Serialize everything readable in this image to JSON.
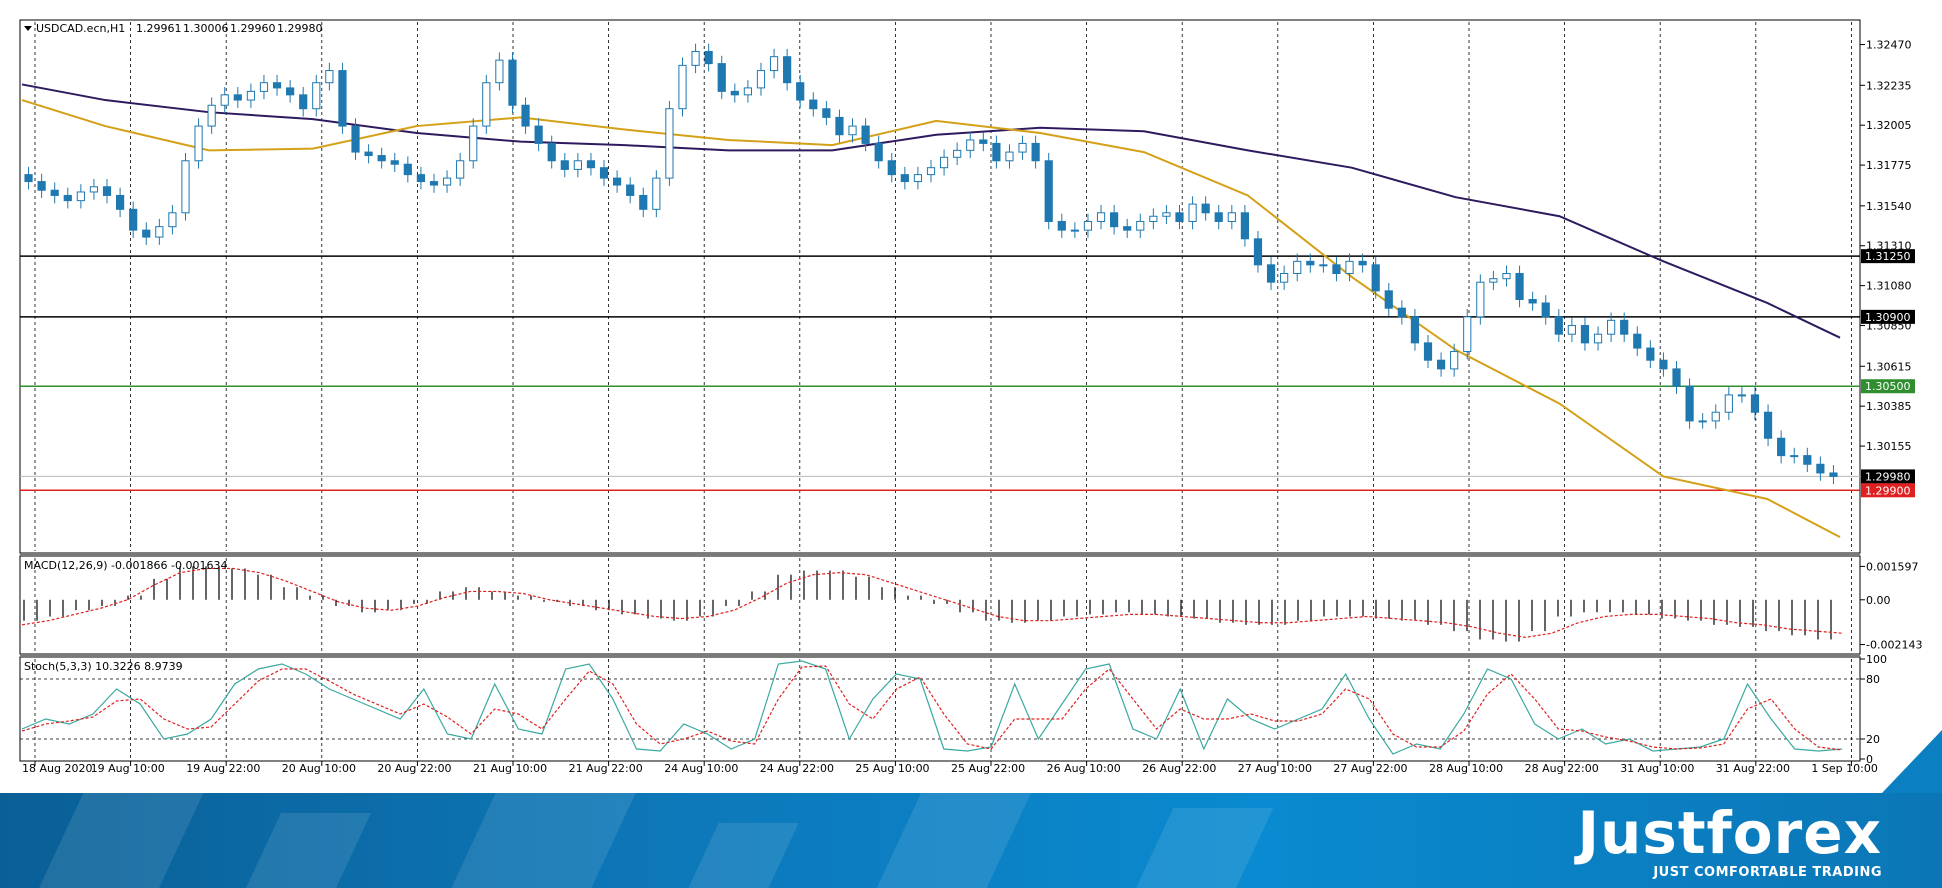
{
  "chart_data": [
    {
      "type": "candlestick",
      "title": "USDCAD.ecn,H1",
      "ohlc_header": [
        "1.29961",
        "1.30006",
        "1.29960",
        "1.29980"
      ],
      "ylim": [
        1.2955,
        1.326
      ],
      "y_ticks": [
        "1.32470",
        "1.32235",
        "1.32005",
        "1.31775",
        "1.31540",
        "1.31310",
        "1.31080",
        "1.30850",
        "1.30615",
        "1.30385",
        "1.30155"
      ],
      "x_tick_labels": [
        "18 Aug 2020",
        "19 Aug 10:00",
        "19 Aug 22:00",
        "20 Aug 10:00",
        "20 Aug 22:00",
        "21 Aug 10:00",
        "21 Aug 22:00",
        "24 Aug 10:00",
        "24 Aug 22:00",
        "25 Aug 10:00",
        "25 Aug 22:00",
        "26 Aug 10:00",
        "26 Aug 22:00",
        "27 Aug 10:00",
        "27 Aug 22:00",
        "28 Aug 10:00",
        "28 Aug 22:00",
        "31 Aug 10:00",
        "31 Aug 22:00",
        "1 Sep 10:00"
      ],
      "colors": {
        "bull": "#ffffff",
        "bear": "#1f78b0",
        "outline": "#1f78b0",
        "ma_fast": "#d4a017",
        "ma_slow": "#2e1a5e"
      },
      "closes": [
        1.3168,
        1.3163,
        1.316,
        1.3157,
        1.3162,
        1.3165,
        1.316,
        1.3152,
        1.314,
        1.3136,
        1.3142,
        1.315,
        1.318,
        1.32,
        1.3212,
        1.3218,
        1.3215,
        1.322,
        1.3225,
        1.3222,
        1.3218,
        1.321,
        1.3225,
        1.3232,
        1.32,
        1.3185,
        1.3183,
        1.318,
        1.3178,
        1.3172,
        1.3168,
        1.3166,
        1.317,
        1.318,
        1.32,
        1.3225,
        1.3238,
        1.3212,
        1.32,
        1.319,
        1.318,
        1.3175,
        1.318,
        1.3176,
        1.317,
        1.3166,
        1.316,
        1.3152,
        1.317,
        1.321,
        1.3235,
        1.3243,
        1.3236,
        1.322,
        1.3218,
        1.3222,
        1.3232,
        1.324,
        1.3225,
        1.3215,
        1.321,
        1.3205,
        1.3195,
        1.32,
        1.319,
        1.318,
        1.3172,
        1.3168,
        1.3172,
        1.3176,
        1.3182,
        1.3186,
        1.3192,
        1.319,
        1.318,
        1.3185,
        1.319,
        1.318,
        1.3145,
        1.314,
        1.314,
        1.3145,
        1.315,
        1.3142,
        1.314,
        1.3145,
        1.3148,
        1.315,
        1.3145,
        1.3155,
        1.315,
        1.3145,
        1.315,
        1.3135,
        1.312,
        1.311,
        1.3115,
        1.3122,
        1.312,
        1.312,
        1.3115,
        1.3122,
        1.312,
        1.3105,
        1.3095,
        1.309,
        1.3075,
        1.3065,
        1.306,
        1.307,
        1.309,
        1.311,
        1.3112,
        1.3115,
        1.31,
        1.3098,
        1.309,
        1.308,
        1.3085,
        1.3075,
        1.308,
        1.3088,
        1.308,
        1.3072,
        1.3065,
        1.306,
        1.305,
        1.303,
        1.303,
        1.3035,
        1.3045,
        1.3045,
        1.3035,
        1.302,
        1.301,
        1.301,
        1.3005,
        1.3,
        1.2998
      ],
      "ma_fast": [
        1.3215,
        1.32,
        1.3186,
        1.3187,
        1.32,
        1.3205,
        1.3198,
        1.3192,
        1.3189,
        1.3203,
        1.3196,
        1.3185,
        1.316,
        1.3113,
        1.3071,
        1.304,
        1.2998,
        1.2985,
        1.2963
      ],
      "ma_slow": [
        1.3224,
        1.3215,
        1.3208,
        1.3204,
        1.3196,
        1.3191,
        1.3189,
        1.3186,
        1.3186,
        1.3195,
        1.3199,
        1.3197,
        1.3186,
        1.3176,
        1.3159,
        1.3148,
        1.3122,
        1.3098,
        1.3078
      ],
      "ma_fast_x": [
        0,
        8,
        18,
        28,
        38,
        48,
        58,
        68,
        78,
        88,
        98,
        108,
        118,
        128,
        138,
        148,
        158,
        168,
        175
      ],
      "ma_slow_x": [
        0,
        8,
        18,
        28,
        38,
        48,
        58,
        68,
        78,
        88,
        98,
        108,
        118,
        128,
        138,
        148,
        158,
        168,
        175
      ],
      "levels": [
        {
          "value": 1.3125,
          "label": "1.31250",
          "color": "#000000"
        },
        {
          "value": 1.309,
          "label": "1.30900",
          "color": "#000000"
        },
        {
          "value": 1.305,
          "label": "1.30500",
          "color": "#2f8f2f"
        },
        {
          "value": 1.2998,
          "label": "1.29980",
          "color": "#000000"
        },
        {
          "value": 1.299,
          "label": "1.29900",
          "color": "#e02020"
        }
      ]
    },
    {
      "type": "bar",
      "title": "MACD(12,26,9) -0.001866 -0.001634",
      "y_ticks": [
        "0.001597",
        "0.00",
        "-0.002143"
      ],
      "ylim": [
        -0.0025,
        0.002
      ],
      "histogram": [
        -0.001,
        -0.0008,
        -0.0005,
        -0.0003,
        0.0002,
        0.001,
        0.0016,
        0.0016,
        0.0015,
        0.0012,
        0.0006,
        0.0002,
        -0.0003,
        -0.0006,
        -0.0005,
        -0.0002,
        0.0004,
        0.0006,
        0.0004,
        0.0002,
        -0.0001,
        -0.0003,
        -0.0005,
        -0.0007,
        -0.0009,
        -0.001,
        -0.0008,
        -0.0003,
        0.0004,
        0.0012,
        0.0014,
        0.0014,
        0.0011,
        0.0006,
        0.0002,
        -0.0002,
        -0.0006,
        -0.001,
        -0.0011,
        -0.001,
        -0.0008,
        -0.0007,
        -0.0006,
        -0.0007,
        -0.0008,
        -0.0009,
        -0.0011,
        -0.0012,
        -0.0012,
        -0.001,
        -0.0008,
        -0.0008,
        -0.0009,
        -0.001,
        -0.0012,
        -0.0015,
        -0.0019,
        -0.002,
        -0.0015,
        -0.0008,
        -0.0006,
        -0.0006,
        -0.0007,
        -0.0009,
        -0.001,
        -0.0012,
        -0.0013,
        -0.0015,
        -0.0017,
        -0.0019
      ],
      "signal": [
        -0.0012,
        -0.001,
        -0.0007,
        -0.0004,
        0.0,
        0.0007,
        0.0013,
        0.0015,
        0.0015,
        0.0013,
        0.0009,
        0.0004,
        -0.0001,
        -0.0004,
        -0.0005,
        -0.0003,
        0.0001,
        0.0004,
        0.0004,
        0.0003,
        0.0,
        -0.0002,
        -0.0004,
        -0.0006,
        -0.0008,
        -0.0009,
        -0.0008,
        -0.0005,
        0.0001,
        0.0008,
        0.0012,
        0.0013,
        0.0012,
        0.0008,
        0.0004,
        0.0,
        -0.0004,
        -0.0008,
        -0.001,
        -0.001,
        -0.0009,
        -0.0008,
        -0.0007,
        -0.0007,
        -0.0008,
        -0.0009,
        -0.001,
        -0.0011,
        -0.0011,
        -0.001,
        -0.0009,
        -0.0008,
        -0.0009,
        -0.001,
        -0.0011,
        -0.0013,
        -0.0016,
        -0.0018,
        -0.0016,
        -0.0011,
        -0.0008,
        -0.0007,
        -0.0007,
        -0.0008,
        -0.0009,
        -0.0011,
        -0.0012,
        -0.0014,
        -0.0015,
        -0.0016
      ]
    },
    {
      "type": "line",
      "title": "Stoch(5,3,3) 10.3226 8.9739",
      "y_ticks": [
        "100",
        "80",
        "20",
        "0"
      ],
      "ylim": [
        0,
        100
      ],
      "main": [
        30,
        40,
        35,
        45,
        70,
        55,
        20,
        25,
        40,
        75,
        90,
        95,
        85,
        70,
        60,
        50,
        40,
        70,
        25,
        20,
        75,
        30,
        25,
        90,
        95,
        60,
        10,
        8,
        35,
        25,
        10,
        20,
        95,
        98,
        90,
        20,
        60,
        85,
        80,
        10,
        8,
        12,
        75,
        20,
        55,
        90,
        95,
        30,
        20,
        70,
        10,
        60,
        40,
        30,
        40,
        50,
        85,
        40,
        5,
        15,
        10,
        45,
        90,
        80,
        35,
        20,
        30,
        15,
        20,
        8,
        10,
        12,
        20,
        75,
        40,
        10,
        8,
        10
      ],
      "signal": [
        28,
        35,
        38,
        42,
        58,
        60,
        40,
        30,
        32,
        55,
        78,
        90,
        90,
        78,
        65,
        55,
        45,
        55,
        42,
        25,
        50,
        45,
        30,
        60,
        88,
        75,
        35,
        15,
        20,
        28,
        18,
        15,
        60,
        92,
        93,
        55,
        40,
        70,
        82,
        45,
        15,
        10,
        40,
        40,
        40,
        70,
        90,
        60,
        30,
        50,
        40,
        40,
        45,
        38,
        38,
        45,
        70,
        60,
        25,
        12,
        12,
        28,
        65,
        85,
        60,
        30,
        28,
        22,
        18,
        12,
        10,
        11,
        15,
        50,
        60,
        30,
        12,
        9
      ],
      "levels": [
        80,
        20
      ]
    }
  ],
  "banner": {
    "brand": "Justforex",
    "tagline": "JUST COMFORTABLE TRADING"
  }
}
